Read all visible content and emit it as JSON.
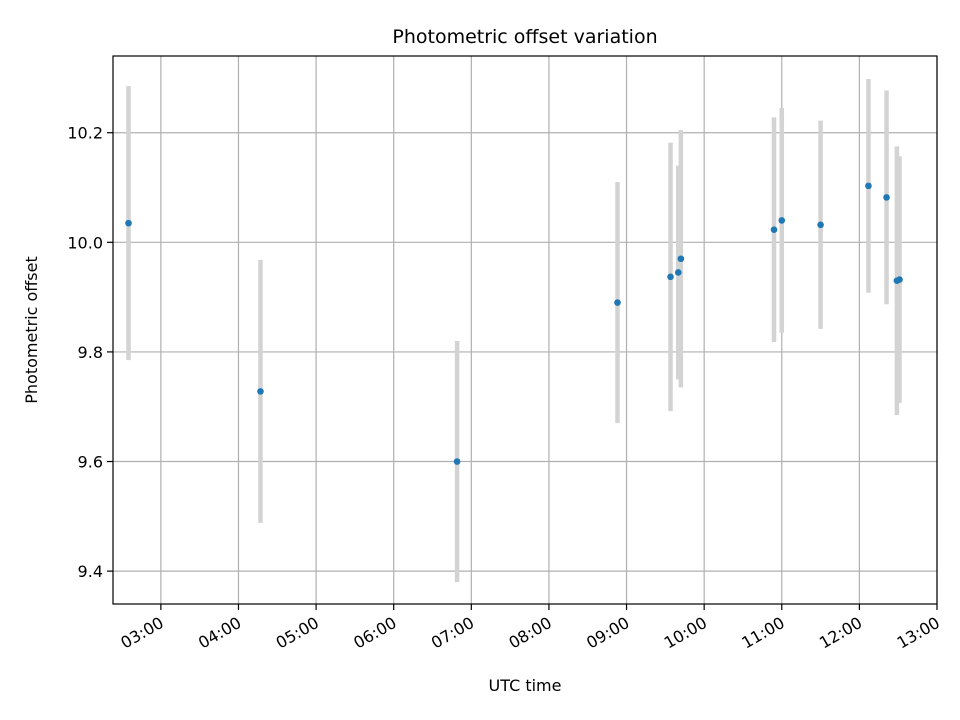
{
  "chart_data": {
    "type": "scatter",
    "title": "Photometric offset variation",
    "xlabel": "UTC time",
    "ylabel": "Photometric offset",
    "grid": true,
    "xlim": [
      "02:23",
      "13:00"
    ],
    "ylim": [
      9.34,
      10.34
    ],
    "x_ticks": [
      "03:00",
      "04:00",
      "05:00",
      "06:00",
      "07:00",
      "08:00",
      "09:00",
      "10:00",
      "11:00",
      "12:00",
      "13:00"
    ],
    "y_ticks": [
      "9.4",
      "9.6",
      "9.8",
      "10.0",
      "10.2"
    ],
    "marker_color": "#1f77b4",
    "errorbar_color": "#d3d3d3",
    "series": [
      {
        "points": [
          {
            "x": "02:35",
            "y": 10.035,
            "err": 0.25
          },
          {
            "x": "04:17",
            "y": 9.728,
            "err": 0.24
          },
          {
            "x": "06:49",
            "y": 9.6,
            "err": 0.22
          },
          {
            "x": "08:53",
            "y": 9.89,
            "err": 0.22
          },
          {
            "x": "09:34",
            "y": 9.937,
            "err": 0.245
          },
          {
            "x": "09:40",
            "y": 9.945,
            "err": 0.195
          },
          {
            "x": "09:42",
            "y": 9.97,
            "err": 0.235
          },
          {
            "x": "10:54",
            "y": 10.023,
            "err": 0.205
          },
          {
            "x": "11:00",
            "y": 10.04,
            "err": 0.205
          },
          {
            "x": "11:30",
            "y": 10.032,
            "err": 0.19
          },
          {
            "x": "12:07",
            "y": 10.103,
            "err": 0.195
          },
          {
            "x": "12:21",
            "y": 10.082,
            "err": 0.195
          },
          {
            "x": "12:29",
            "y": 9.93,
            "err": 0.245
          },
          {
            "x": "12:31",
            "y": 9.932,
            "err": 0.225
          }
        ]
      }
    ]
  }
}
